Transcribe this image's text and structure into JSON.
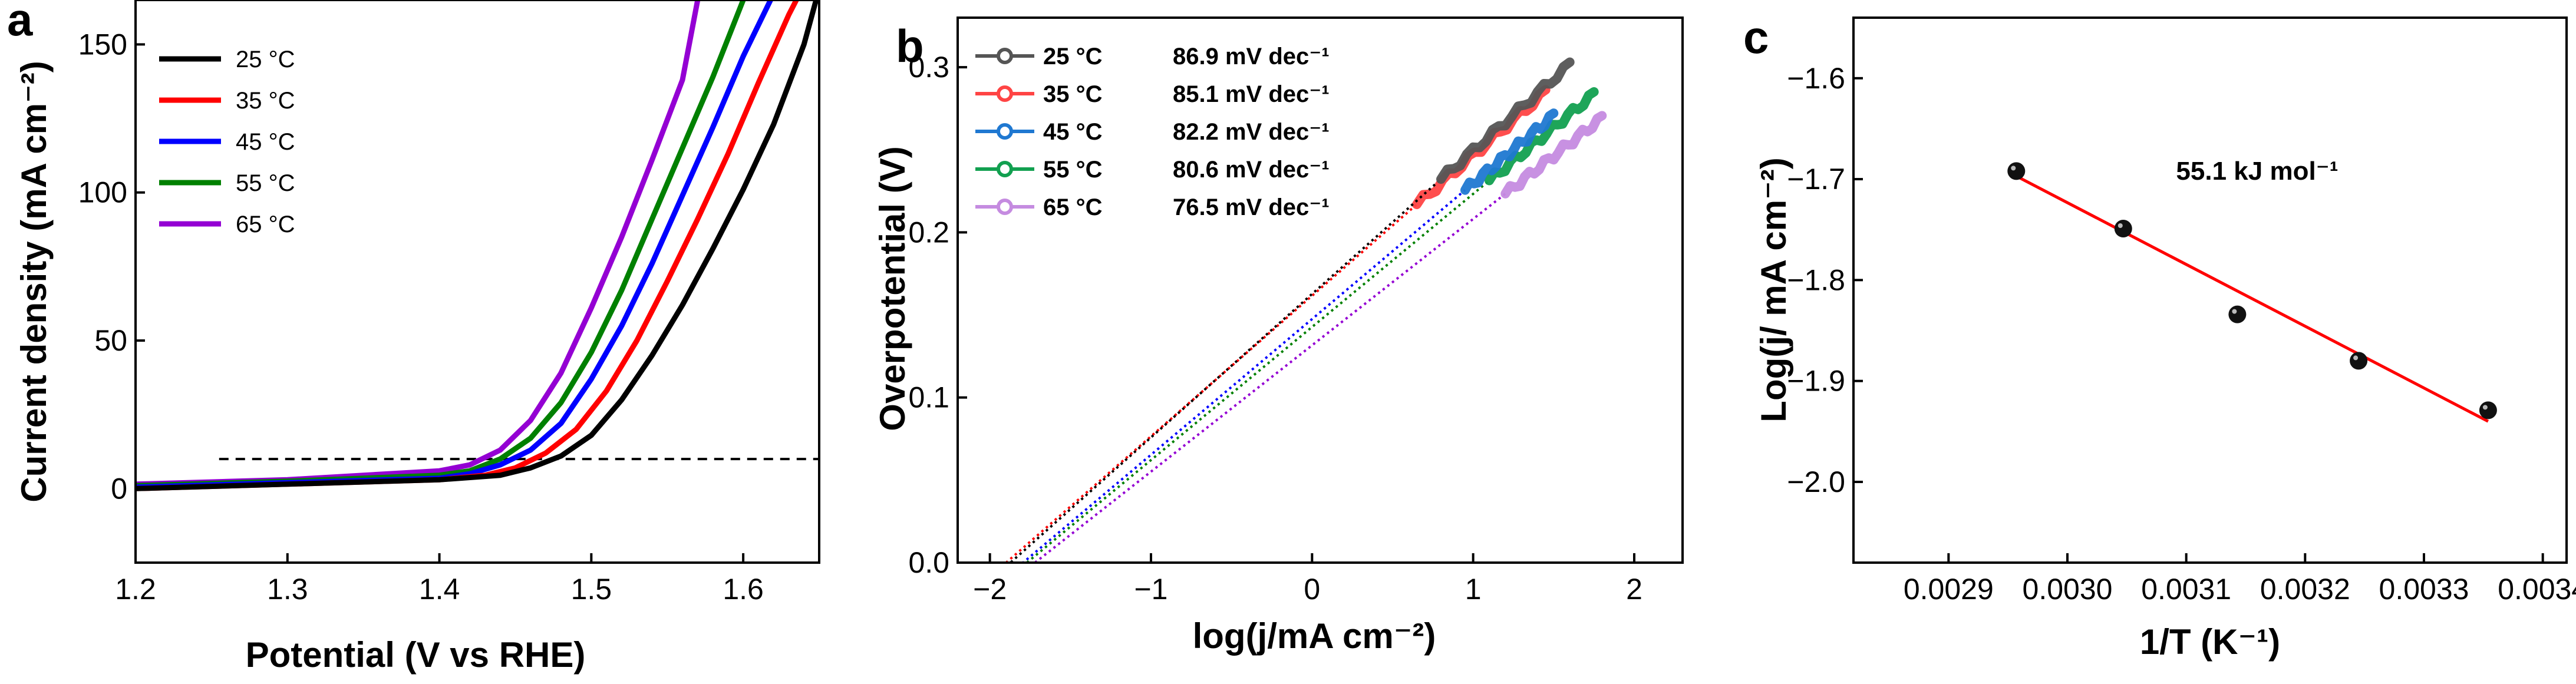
{
  "chart_data": [
    {
      "panel": "a",
      "type": "line",
      "xlabel": "Potential (V vs RHE)",
      "ylabel": "Current density (mA cm⁻²)",
      "xlim": [
        1.2,
        1.65
      ],
      "ylim": [
        -25,
        165
      ],
      "xticks": [
        1.2,
        1.3,
        1.4,
        1.5,
        1.6
      ],
      "xtick_labels": [
        "1.2",
        "1.3",
        "1.4",
        "1.5",
        "1.6"
      ],
      "yticks": [
        0,
        50,
        100,
        150
      ],
      "ytick_labels": [
        "0",
        "50",
        "100",
        "150"
      ],
      "reference_line": {
        "y": 10,
        "x_from": 1.255,
        "x_to": 1.65,
        "style": "dashed"
      },
      "legend_position": "top-left",
      "series": [
        {
          "name": "25 °C",
          "color": "#000000",
          "x": [
            1.2,
            1.3,
            1.4,
            1.44,
            1.46,
            1.48,
            1.5,
            1.52,
            1.54,
            1.56,
            1.58,
            1.6,
            1.62,
            1.64,
            1.648
          ],
          "y": [
            0,
            1.5,
            3,
            4.5,
            7,
            11,
            18,
            30,
            45,
            62,
            81,
            101,
            123,
            150,
            165
          ]
        },
        {
          "name": "35 °C",
          "color": "#ff0000",
          "x": [
            1.2,
            1.3,
            1.4,
            1.43,
            1.45,
            1.47,
            1.49,
            1.51,
            1.53,
            1.55,
            1.57,
            1.59,
            1.61,
            1.63,
            1.635
          ],
          "y": [
            0,
            1.5,
            3,
            4.5,
            7,
            12,
            20,
            33,
            50,
            70,
            91,
            113,
            137,
            160,
            165
          ]
        },
        {
          "name": "45 °C",
          "color": "#0000ff",
          "x": [
            1.2,
            1.3,
            1.4,
            1.42,
            1.44,
            1.46,
            1.48,
            1.5,
            1.52,
            1.54,
            1.56,
            1.58,
            1.6,
            1.618
          ],
          "y": [
            0.5,
            2,
            3.5,
            5,
            8,
            13,
            22,
            37,
            55,
            76,
            99,
            122,
            146,
            165
          ]
        },
        {
          "name": "55 °C",
          "color": "#008000",
          "x": [
            1.2,
            1.3,
            1.4,
            1.42,
            1.44,
            1.46,
            1.48,
            1.5,
            1.52,
            1.54,
            1.56,
            1.58,
            1.6
          ],
          "y": [
            1,
            2.5,
            4.5,
            6,
            10,
            17,
            29,
            46,
            67,
            91,
            115,
            139,
            165
          ]
        },
        {
          "name": "65 °C",
          "color": "#9400d3",
          "x": [
            1.2,
            1.3,
            1.4,
            1.42,
            1.44,
            1.46,
            1.48,
            1.5,
            1.52,
            1.54,
            1.56,
            1.57
          ],
          "y": [
            1.5,
            3,
            6,
            8,
            13,
            23,
            39,
            61,
            85,
            111,
            138,
            165
          ]
        }
      ]
    },
    {
      "panel": "b",
      "type": "line",
      "xlabel": "log(j/mA cm⁻²)",
      "ylabel": "Overpotential (V)",
      "xlim": [
        -2.2,
        2.3
      ],
      "ylim": [
        0.0,
        0.33
      ],
      "xticks": [
        -2,
        -1,
        0,
        1,
        2
      ],
      "xtick_labels": [
        "−2",
        "−1",
        "0",
        "1",
        "2"
      ],
      "yticks": [
        0.0,
        0.1,
        0.2,
        0.3
      ],
      "ytick_labels": [
        "0.0",
        "0.1",
        "0.2",
        "0.3"
      ],
      "legend_position": "top-left",
      "series": [
        {
          "name": "25 °C",
          "tafel": "86.9 mV dec⁻¹",
          "color": "#555555",
          "fit_color": "#000000",
          "slope": 0.0869,
          "intercept": 0.1627,
          "x_fit": [
            -1.87,
            0.8
          ],
          "x_data": [
            0.8,
            1.6
          ]
        },
        {
          "name": "35 °C",
          "tafel": "85.1 mV dec⁻¹",
          "color": "#ff4444",
          "fit_color": "#ff0000",
          "slope": 0.0851,
          "intercept": 0.1616,
          "x_fit": [
            -1.9,
            0.65
          ],
          "x_data": [
            0.65,
            1.45
          ]
        },
        {
          "name": "45 °C",
          "tafel": "82.2 mV dec⁻¹",
          "color": "#1f78d1",
          "fit_color": "#0000ff",
          "slope": 0.0822,
          "intercept": 0.1475,
          "x_fit": [
            -1.8,
            0.95
          ],
          "x_data": [
            0.95,
            1.5
          ]
        },
        {
          "name": "55 °C",
          "tafel": "80.6 mV dec⁻¹",
          "color": "#12a050",
          "fit_color": "#008000",
          "slope": 0.0806,
          "intercept": 0.1427,
          "x_fit": [
            -1.77,
            1.1
          ],
          "x_data": [
            1.1,
            1.75
          ]
        },
        {
          "name": "65 °C",
          "tafel": "76.5 mV dec⁻¹",
          "color": "#c58be0",
          "fit_color": "#9400d3",
          "slope": 0.0765,
          "intercept": 0.1316,
          "x_fit": [
            -1.72,
            1.2
          ],
          "x_data": [
            1.2,
            1.8
          ]
        }
      ]
    },
    {
      "panel": "c",
      "type": "scatter",
      "xlabel": "1/T (K⁻¹)",
      "ylabel": "Log(j/ mA cm⁻²)",
      "xlim": [
        0.00282,
        0.00342
      ],
      "ylim": [
        -2.08,
        -1.54
      ],
      "xticks": [
        0.0029,
        0.003,
        0.0031,
        0.0032,
        0.0033,
        0.0034
      ],
      "xtick_labels": [
        "0.0029",
        "0.0030",
        "0.0031",
        "0.0032",
        "0.0033",
        "0.0034"
      ],
      "yticks": [
        -2.0,
        -1.9,
        -1.8,
        -1.7,
        -1.6
      ],
      "ytick_labels": [
        "−2.0",
        "−1.9",
        "−1.8",
        "−1.7",
        "−1.6"
      ],
      "annotation": "55.1 kJ mol⁻¹",
      "points": {
        "x": [
          0.002957,
          0.003047,
          0.003143,
          0.003245,
          0.003354
        ],
        "y": [
          -1.692,
          -1.749,
          -1.834,
          -1.88,
          -1.929
        ]
      },
      "fit": {
        "x": [
          0.002957,
          0.003354
        ],
        "y": [
          -1.697,
          -1.94
        ],
        "color": "#ff0000"
      }
    }
  ]
}
